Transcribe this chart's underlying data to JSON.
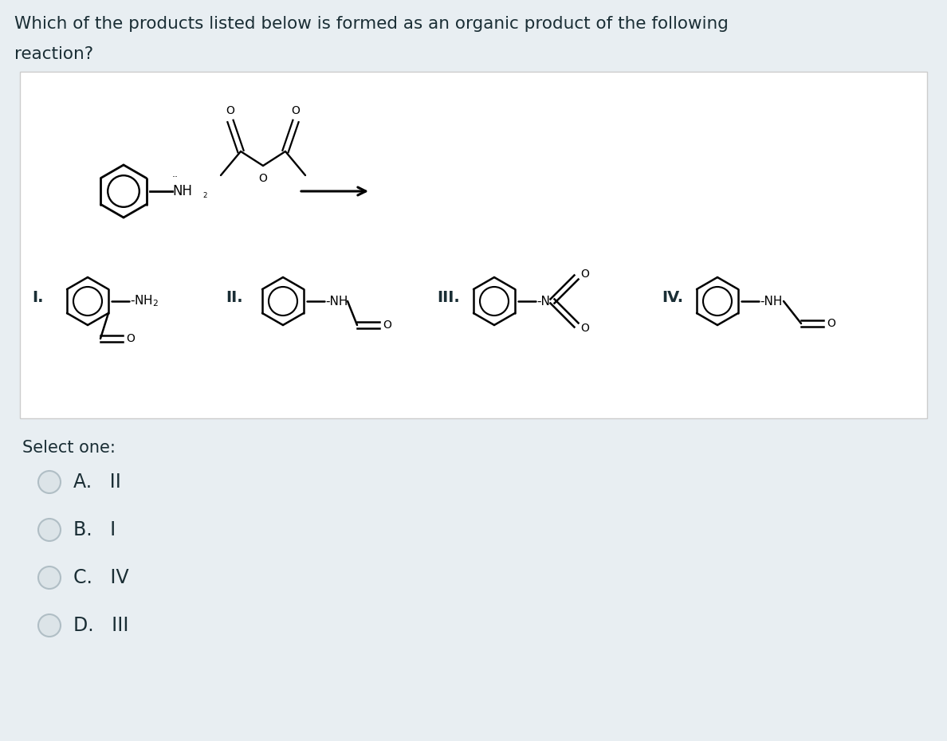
{
  "bg_color": "#e8eef2",
  "white_box_color": "#ffffff",
  "text_color": "#1a2e35",
  "title_line1": "Which of the products listed below is formed as an organic product of the following",
  "title_line2": "reaction?",
  "options": [
    "A.   II",
    "B.   I",
    "C.   IV",
    "D.   III"
  ],
  "select_label": "Select one:",
  "font_size_title": 15.5,
  "font_size_options": 17,
  "ring_lw": 1.8,
  "arrow_lw": 2.2
}
